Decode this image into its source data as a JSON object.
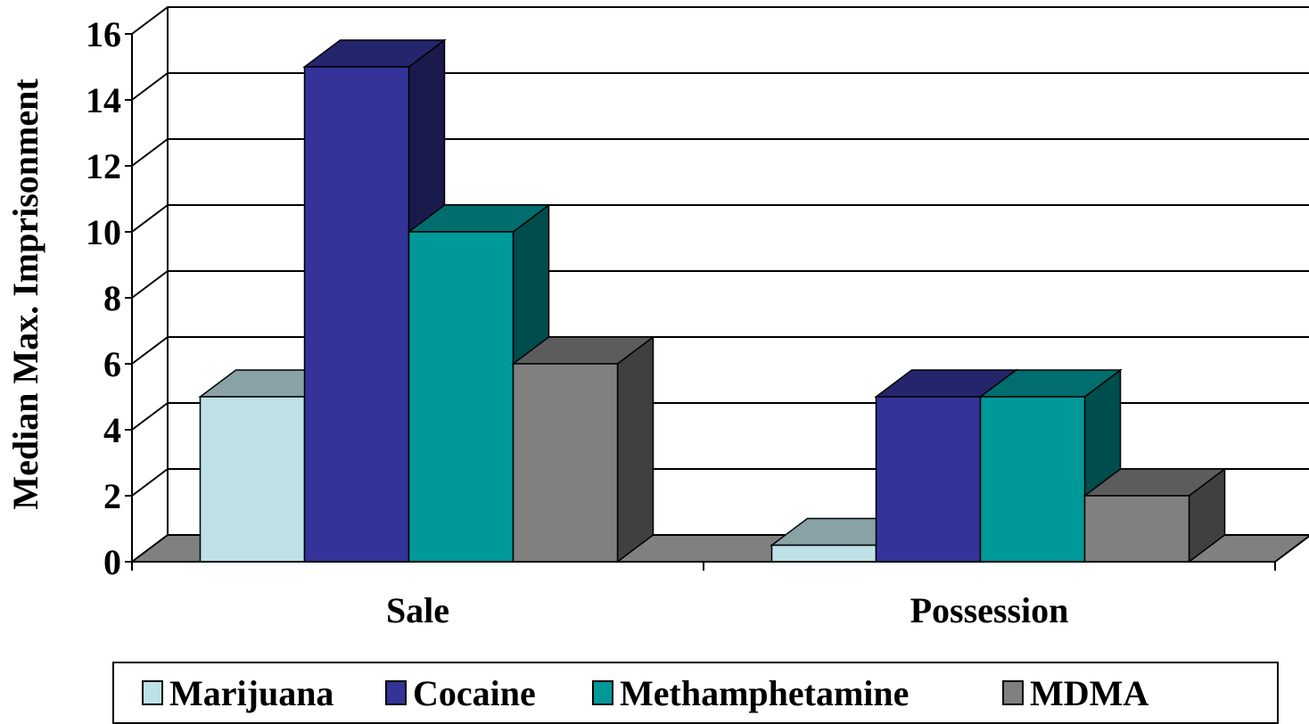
{
  "chart_data": {
    "type": "bar",
    "three_d": true,
    "title": "",
    "xlabel": "",
    "ylabel": "Median Max. Imprisonment",
    "ylim": [
      0,
      16
    ],
    "yticks": [
      "0",
      "2",
      "4",
      "6",
      "8",
      "10",
      "12",
      "14",
      "16"
    ],
    "categories": [
      "Sale",
      "Possession"
    ],
    "series": [
      {
        "name": "Marijuana",
        "values": [
          5,
          0.5
        ],
        "color": "#BDE1E6"
      },
      {
        "name": "Cocaine",
        "values": [
          15,
          5
        ],
        "color": "#343399"
      },
      {
        "name": "Methamphetamine",
        "values": [
          10,
          5
        ],
        "color": "#009999"
      },
      {
        "name": "MDMA",
        "values": [
          6,
          2
        ],
        "color": "#808080"
      }
    ],
    "grid": true,
    "legend_position": "bottom"
  }
}
